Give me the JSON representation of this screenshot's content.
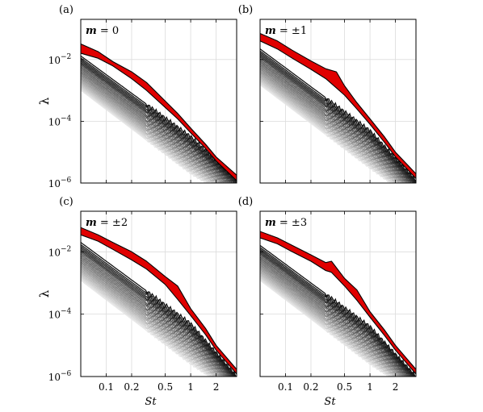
{
  "chart_data": [
    {
      "panel_letter": "(a)",
      "mode_label": "m = 0",
      "type": "line",
      "x_scale": "log",
      "y_scale": "log",
      "xlim": [
        0.05,
        3.5
      ],
      "ylim": [
        1e-06,
        0.2
      ],
      "xlabel": "",
      "ylabel": "λ",
      "x_ticks": [
        "0.1",
        "0.2",
        "0.5",
        "1",
        "2"
      ],
      "y_ticks": [
        "10^-6",
        "10^-4",
        "10^-2"
      ],
      "grid": true,
      "highlight_color": "#e00000",
      "series_color_range": [
        "#141414",
        "#e6e6e6"
      ],
      "leading_mode_upper": [
        [
          0.05,
          0.032
        ],
        [
          0.08,
          0.018
        ],
        [
          0.12,
          0.0085
        ],
        [
          0.2,
          0.004
        ],
        [
          0.3,
          0.0018
        ],
        [
          0.5,
          0.00045
        ],
        [
          0.7,
          0.00018
        ],
        [
          1.0,
          6e-05
        ],
        [
          1.5,
          1.8e-05
        ],
        [
          2.0,
          7e-06
        ],
        [
          3.5,
          1.8e-06
        ]
      ],
      "leading_mode_lower": [
        [
          0.05,
          0.016
        ],
        [
          0.08,
          0.011
        ],
        [
          0.12,
          0.0062
        ],
        [
          0.2,
          0.0024
        ],
        [
          0.3,
          0.001
        ],
        [
          0.5,
          0.00028
        ],
        [
          0.7,
          0.00012
        ],
        [
          1.0,
          4.2e-05
        ],
        [
          1.5,
          1.3e-05
        ],
        [
          2.0,
          5.2e-06
        ],
        [
          3.5,
          1.2e-06
        ]
      ],
      "other_modes": {
        "count": 30,
        "St_0.05": [
          0.013,
          0.001
        ],
        "St_1": [
          3.2e-05,
          2e-06
        ],
        "St_3.5": [
          1.3e-06,
          2.5e-07
        ]
      }
    },
    {
      "panel_letter": "(b)",
      "mode_label": "m = ±1",
      "type": "line",
      "x_scale": "log",
      "y_scale": "log",
      "xlim": [
        0.05,
        3.5
      ],
      "ylim": [
        1e-06,
        0.2
      ],
      "xlabel": "",
      "ylabel": "",
      "x_ticks": [
        "0.1",
        "0.2",
        "0.5",
        "1",
        "2"
      ],
      "y_ticks": [
        "10^-6",
        "10^-4",
        "10^-2"
      ],
      "grid": true,
      "highlight_color": "#e00000",
      "series_color_range": [
        "#141414",
        "#e6e6e6"
      ],
      "leading_mode_upper": [
        [
          0.05,
          0.07
        ],
        [
          0.08,
          0.04
        ],
        [
          0.12,
          0.02
        ],
        [
          0.2,
          0.009
        ],
        [
          0.3,
          0.005
        ],
        [
          0.4,
          0.004
        ],
        [
          0.5,
          0.0014
        ],
        [
          0.7,
          0.0004
        ],
        [
          1.0,
          0.00012
        ],
        [
          1.5,
          3e-05
        ],
        [
          2.0,
          1e-05
        ],
        [
          3.5,
          2e-06
        ]
      ],
      "leading_mode_lower": [
        [
          0.05,
          0.04
        ],
        [
          0.08,
          0.022
        ],
        [
          0.12,
          0.011
        ],
        [
          0.2,
          0.0048
        ],
        [
          0.3,
          0.0024
        ],
        [
          0.4,
          0.0012
        ],
        [
          0.5,
          0.0007
        ],
        [
          0.7,
          0.00025
        ],
        [
          1.0,
          8e-05
        ],
        [
          1.5,
          2e-05
        ],
        [
          2.0,
          7e-06
        ],
        [
          3.5,
          1.4e-06
        ]
      ],
      "other_modes": {
        "count": 30,
        "St_0.05": [
          0.022,
          0.0015
        ],
        "St_1": [
          5e-05,
          3e-06
        ],
        "St_3.5": [
          1.2e-06,
          2.5e-07
        ]
      }
    },
    {
      "panel_letter": "(c)",
      "mode_label": "m = ±2",
      "type": "line",
      "x_scale": "log",
      "y_scale": "log",
      "xlim": [
        0.05,
        3.5
      ],
      "ylim": [
        1e-06,
        0.2
      ],
      "xlabel": "St",
      "ylabel": "λ",
      "x_ticks": [
        "0.1",
        "0.2",
        "0.5",
        "1",
        "2"
      ],
      "y_ticks": [
        "10^-6",
        "10^-4",
        "10^-2"
      ],
      "grid": true,
      "highlight_color": "#e00000",
      "series_color_range": [
        "#141414",
        "#e6e6e6"
      ],
      "leading_mode_upper": [
        [
          0.05,
          0.06
        ],
        [
          0.08,
          0.035
        ],
        [
          0.12,
          0.02
        ],
        [
          0.2,
          0.01
        ],
        [
          0.3,
          0.005
        ],
        [
          0.5,
          0.0016
        ],
        [
          0.7,
          0.0008
        ],
        [
          1.0,
          0.00015
        ],
        [
          1.5,
          3.5e-05
        ],
        [
          2.0,
          1e-05
        ],
        [
          3.5,
          1.7e-06
        ]
      ],
      "leading_mode_lower": [
        [
          0.05,
          0.035
        ],
        [
          0.08,
          0.022
        ],
        [
          0.12,
          0.012
        ],
        [
          0.2,
          0.0055
        ],
        [
          0.3,
          0.0028
        ],
        [
          0.5,
          0.0009
        ],
        [
          0.7,
          0.0003
        ],
        [
          1.0,
          9e-05
        ],
        [
          1.5,
          2.2e-05
        ],
        [
          2.0,
          7e-06
        ],
        [
          3.5,
          1.2e-06
        ]
      ],
      "other_modes": {
        "count": 30,
        "St_0.05": [
          0.02,
          0.0012
        ],
        "St_1": [
          5e-05,
          2.5e-06
        ],
        "St_3.5": [
          1e-06,
          2.5e-07
        ]
      }
    },
    {
      "panel_letter": "(d)",
      "mode_label": "m = ±3",
      "type": "line",
      "x_scale": "log",
      "y_scale": "log",
      "xlim": [
        0.05,
        3.5
      ],
      "ylim": [
        1e-06,
        0.2
      ],
      "xlabel": "St",
      "ylabel": "",
      "x_ticks": [
        "0.1",
        "0.2",
        "0.5",
        "1",
        "2"
      ],
      "y_ticks": [
        "10^-6",
        "10^-4",
        "10^-2"
      ],
      "grid": true,
      "highlight_color": "#e00000",
      "series_color_range": [
        "#141414",
        "#e6e6e6"
      ],
      "leading_mode_upper": [
        [
          0.05,
          0.045
        ],
        [
          0.08,
          0.028
        ],
        [
          0.12,
          0.016
        ],
        [
          0.2,
          0.008
        ],
        [
          0.3,
          0.0045
        ],
        [
          0.35,
          0.005
        ],
        [
          0.5,
          0.0014
        ],
        [
          0.7,
          0.0006
        ],
        [
          1.0,
          0.00012
        ],
        [
          1.5,
          3e-05
        ],
        [
          2.0,
          1e-05
        ],
        [
          3.5,
          1.7e-06
        ]
      ],
      "leading_mode_lower": [
        [
          0.05,
          0.028
        ],
        [
          0.08,
          0.018
        ],
        [
          0.12,
          0.01
        ],
        [
          0.2,
          0.005
        ],
        [
          0.3,
          0.0025
        ],
        [
          0.35,
          0.0022
        ],
        [
          0.5,
          0.0008
        ],
        [
          0.7,
          0.00028
        ],
        [
          1.0,
          8e-05
        ],
        [
          1.5,
          2e-05
        ],
        [
          2.0,
          7e-06
        ],
        [
          3.5,
          1.2e-06
        ]
      ],
      "other_modes": {
        "count": 30,
        "St_0.05": [
          0.016,
          0.0012
        ],
        "St_1": [
          4e-05,
          2.5e-06
        ],
        "St_3.5": [
          1e-06,
          2.5e-07
        ]
      }
    }
  ]
}
